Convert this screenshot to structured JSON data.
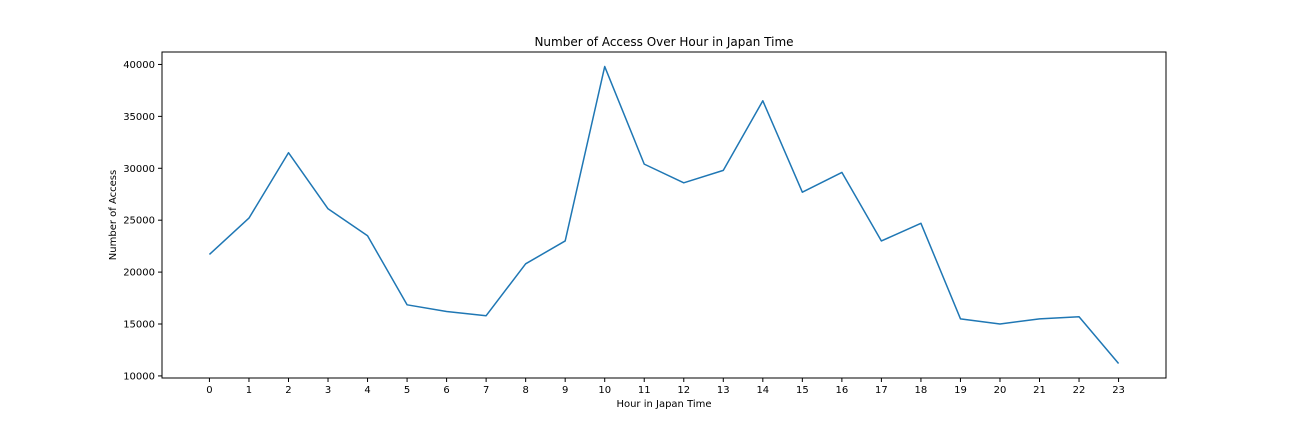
{
  "chart_data": {
    "type": "line",
    "title": "Number of Access Over Hour in Japan Time",
    "xlabel": "Hour in Japan Time",
    "ylabel": "Number of Access",
    "x": [
      0,
      1,
      2,
      3,
      4,
      5,
      6,
      7,
      8,
      9,
      10,
      11,
      12,
      13,
      14,
      15,
      16,
      17,
      18,
      19,
      20,
      21,
      22,
      23
    ],
    "xticks": [
      "0",
      "1",
      "2",
      "3",
      "4",
      "5",
      "6",
      "7",
      "8",
      "9",
      "10",
      "11",
      "12",
      "13",
      "14",
      "15",
      "16",
      "17",
      "18",
      "19",
      "20",
      "21",
      "22",
      "23"
    ],
    "yticks": [
      "10000",
      "15000",
      "20000",
      "25000",
      "30000",
      "35000",
      "40000"
    ],
    "ytick_values": [
      10000,
      15000,
      20000,
      25000,
      30000,
      35000,
      40000
    ],
    "xlim": [
      -1.2,
      24.2
    ],
    "ylim": [
      9800,
      41200
    ],
    "grid": false,
    "series": [
      {
        "color": "#1f77b4",
        "values": [
          21700,
          25200,
          31500,
          26100,
          23500,
          16850,
          16200,
          15800,
          20800,
          23000,
          39800,
          30400,
          28600,
          29800,
          36500,
          27700,
          29600,
          23000,
          24700,
          15500,
          15000,
          15500,
          15700,
          11200
        ]
      }
    ]
  }
}
